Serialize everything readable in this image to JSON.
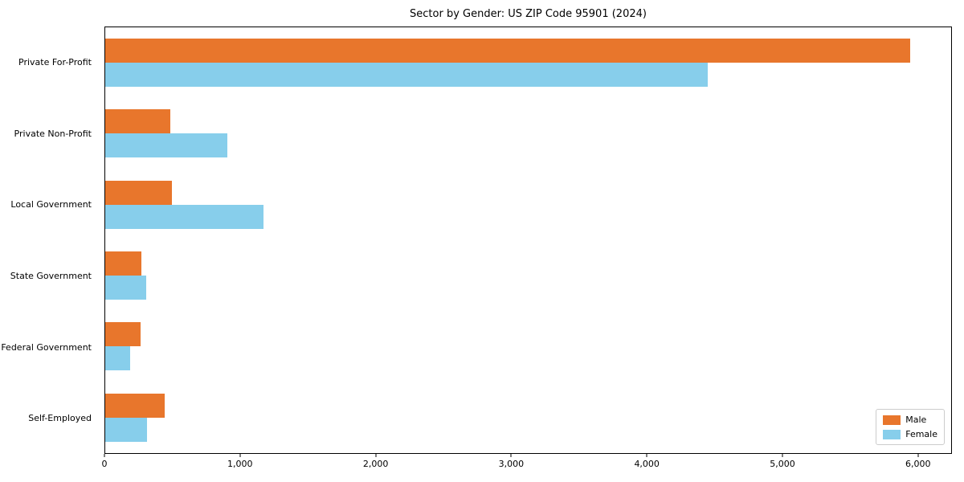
{
  "chart_data": {
    "type": "bar",
    "orientation": "horizontal",
    "title": "Sector by Gender: US ZIP Code 95901 (2024)",
    "categories": [
      "Private For-Profit",
      "Private Non-Profit",
      "Local Government",
      "State Government",
      "Federal Government",
      "Self-Employed"
    ],
    "series": [
      {
        "name": "Male",
        "color": "#e8762c",
        "values": [
          5950,
          480,
          490,
          270,
          260,
          440
        ]
      },
      {
        "name": "Female",
        "color": "#87ceeb",
        "values": [
          4450,
          900,
          1170,
          300,
          185,
          310
        ]
      }
    ],
    "xlim": [
      0,
      6250
    ],
    "xticks": [
      0,
      1000,
      2000,
      3000,
      4000,
      5000,
      6000
    ],
    "xtick_labels": [
      "0",
      "1,000",
      "2,000",
      "3,000",
      "4,000",
      "5,000",
      "6,000"
    ],
    "xlabel": "",
    "ylabel": "",
    "grid": false,
    "legend": {
      "position": "lower right",
      "entries": [
        "Male",
        "Female"
      ]
    }
  }
}
